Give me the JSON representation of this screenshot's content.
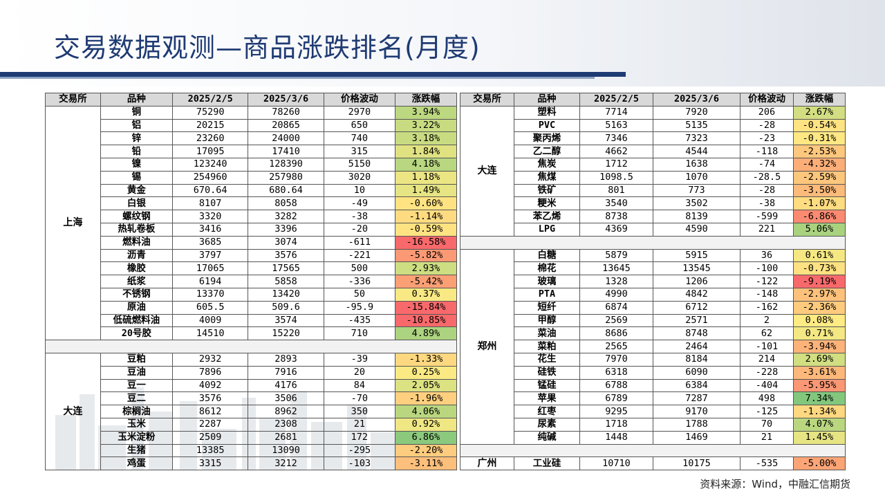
{
  "title": "交易数据观测—商品涨跌排名(月度)",
  "source": "资料来源：Wind，中融汇信期货",
  "headers": [
    "交易所",
    "品种",
    "2025/2/5",
    "2025/3/6",
    "价格波动",
    "涨跌幅"
  ],
  "left_groups": [
    {
      "exchange": "上海",
      "rows": [
        [
          "铜",
          "75290",
          "78260",
          "2970",
          "3.94%"
        ],
        [
          "铝",
          "20215",
          "20865",
          "650",
          "3.22%"
        ],
        [
          "锌",
          "23260",
          "24000",
          "740",
          "3.18%"
        ],
        [
          "铅",
          "17095",
          "17410",
          "315",
          "1.84%"
        ],
        [
          "镍",
          "123240",
          "128390",
          "5150",
          "4.18%"
        ],
        [
          "锡",
          "254960",
          "257980",
          "3020",
          "1.18%"
        ],
        [
          "黄金",
          "670.64",
          "680.64",
          "10",
          "1.49%"
        ],
        [
          "白银",
          "8107",
          "8058",
          "-49",
          "-0.60%"
        ],
        [
          "螺纹钢",
          "3320",
          "3282",
          "-38",
          "-1.14%"
        ],
        [
          "热轧卷板",
          "3416",
          "3396",
          "-20",
          "-0.59%"
        ],
        [
          "燃料油",
          "3685",
          "3074",
          "-611",
          "-16.58%"
        ],
        [
          "沥青",
          "3797",
          "3576",
          "-221",
          "-5.82%"
        ],
        [
          "橡胶",
          "17065",
          "17565",
          "500",
          "2.93%"
        ],
        [
          "纸浆",
          "6194",
          "5858",
          "-336",
          "-5.42%"
        ],
        [
          "不锈钢",
          "13370",
          "13420",
          "50",
          "0.37%"
        ],
        [
          "原油",
          "605.5",
          "509.6",
          "-95.9",
          "-15.84%"
        ],
        [
          "低硫燃料油",
          "4009",
          "3574",
          "-435",
          "-10.85%"
        ],
        [
          "20号胶",
          "14510",
          "15220",
          "710",
          "4.89%"
        ]
      ]
    },
    {
      "exchange": "大连",
      "rows": [
        [
          "豆粕",
          "2932",
          "2893",
          "-39",
          "-1.33%"
        ],
        [
          "豆油",
          "7896",
          "7916",
          "20",
          "0.25%"
        ],
        [
          "豆一",
          "4092",
          "4176",
          "84",
          "2.05%"
        ],
        [
          "豆二",
          "3576",
          "3506",
          "-70",
          "-1.96%"
        ],
        [
          "棕榈油",
          "8612",
          "8962",
          "350",
          "4.06%"
        ],
        [
          "玉米",
          "2287",
          "2308",
          "21",
          "0.92%"
        ],
        [
          "玉米淀粉",
          "2509",
          "2681",
          "172",
          "6.86%"
        ],
        [
          "生猪",
          "13385",
          "13090",
          "-295",
          "-2.20%"
        ],
        [
          "鸡蛋",
          "3315",
          "3212",
          "-103",
          "-3.11%"
        ]
      ]
    }
  ],
  "right_groups": [
    {
      "exchange": "大连",
      "rows": [
        [
          "塑料",
          "7714",
          "7920",
          "206",
          "2.67%"
        ],
        [
          "PVC",
          "5163",
          "5135",
          "-28",
          "-0.54%"
        ],
        [
          "聚丙烯",
          "7346",
          "7323",
          "-23",
          "-0.31%"
        ],
        [
          "乙二醇",
          "4662",
          "4544",
          "-118",
          "-2.53%"
        ],
        [
          "焦炭",
          "1712",
          "1638",
          "-74",
          "-4.32%"
        ],
        [
          "焦煤",
          "1098.5",
          "1070",
          "-28.5",
          "-2.59%"
        ],
        [
          "铁矿",
          "801",
          "773",
          "-28",
          "-3.50%"
        ],
        [
          "粳米",
          "3540",
          "3502",
          "-38",
          "-1.07%"
        ],
        [
          "苯乙烯",
          "8738",
          "8139",
          "-599",
          "-6.86%"
        ],
        [
          "LPG",
          "4369",
          "4590",
          "221",
          "5.06%"
        ]
      ]
    },
    {
      "exchange": "郑州",
      "rows": [
        [
          "白糖",
          "5879",
          "5915",
          "36",
          "0.61%"
        ],
        [
          "棉花",
          "13645",
          "13545",
          "-100",
          "-0.73%"
        ],
        [
          "玻璃",
          "1328",
          "1206",
          "-122",
          "-9.19%"
        ],
        [
          "PTA",
          "4990",
          "4842",
          "-148",
          "-2.97%"
        ],
        [
          "短纤",
          "6874",
          "6712",
          "-162",
          "-2.36%"
        ],
        [
          "甲醇",
          "2569",
          "2571",
          "2",
          "0.08%"
        ],
        [
          "菜油",
          "8686",
          "8748",
          "62",
          "0.71%"
        ],
        [
          "菜粕",
          "2565",
          "2464",
          "-101",
          "-3.94%"
        ],
        [
          "花生",
          "7970",
          "8184",
          "214",
          "2.69%"
        ],
        [
          "硅铁",
          "6318",
          "6090",
          "-228",
          "-3.61%"
        ],
        [
          "锰硅",
          "6788",
          "6384",
          "-404",
          "-5.95%"
        ],
        [
          "苹果",
          "6789",
          "7287",
          "498",
          "7.34%"
        ],
        [
          "红枣",
          "9295",
          "9170",
          "-125",
          "-1.34%"
        ],
        [
          "尿素",
          "1718",
          "1788",
          "70",
          "4.07%"
        ],
        [
          "纯碱",
          "1448",
          "1469",
          "21",
          "1.45%"
        ]
      ]
    },
    {
      "exchange": "广州",
      "rows": [
        [
          "工业硅",
          "10710",
          "10175",
          "-535",
          "-5.00%"
        ]
      ]
    }
  ]
}
